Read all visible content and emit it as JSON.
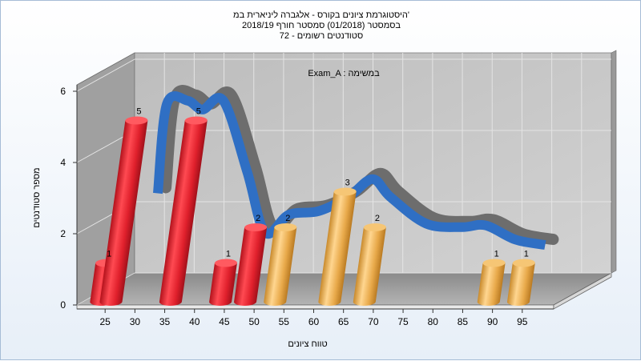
{
  "chart_data": {
    "type": "bar",
    "title_lines": [
      "היסטוגרמת ציונים בקורס - אלגברה ליניארית במ'",
      "בסמסטר  (01/2018)  סמסטר חורף 2018/19",
      "סטודנטים רשומים - 72"
    ],
    "subtitle": "Exam_A : במשימה",
    "xlabel": "טווח ציונים",
    "ylabel": "מספר סטודנטים",
    "ylim": [
      0,
      6
    ],
    "yticks": [
      "0",
      "2",
      "4",
      "6"
    ],
    "categories": [
      "25",
      "30",
      "35",
      "40",
      "45",
      "50",
      "55",
      "60",
      "65",
      "70",
      "75",
      "80",
      "85",
      "90",
      "95"
    ],
    "bars": [
      {
        "x": 27.5,
        "value": 1,
        "label": "1",
        "group": "fail"
      },
      {
        "x": 32.5,
        "value": 5,
        "label": "5",
        "group": "fail"
      },
      {
        "x": 42.5,
        "value": 5,
        "label": "5",
        "group": "fail"
      },
      {
        "x": 47.5,
        "value": 1,
        "label": "1",
        "group": "fail"
      },
      {
        "x": 52.5,
        "value": 2,
        "label": "2",
        "group": "fail"
      },
      {
        "x": 57.5,
        "value": 2,
        "label": "2",
        "group": "pass"
      },
      {
        "x": 67.5,
        "value": 3,
        "label": "3",
        "group": "pass"
      },
      {
        "x": 72.5,
        "value": 2,
        "label": "2",
        "group": "pass"
      },
      {
        "x": 92.5,
        "value": 1,
        "label": "1",
        "group": "pass"
      },
      {
        "x": 97.5,
        "value": 1,
        "label": "1",
        "group": "pass"
      }
    ],
    "curve": [
      {
        "x": 35,
        "y": 3.0
      },
      {
        "x": 36.5,
        "y": 5.5
      },
      {
        "x": 40,
        "y": 5.6
      },
      {
        "x": 42.5,
        "y": 5.35
      },
      {
        "x": 46,
        "y": 5.6
      },
      {
        "x": 50,
        "y": 3.6
      },
      {
        "x": 53,
        "y": 1.9
      },
      {
        "x": 57,
        "y": 2.4
      },
      {
        "x": 62,
        "y": 2.5
      },
      {
        "x": 67,
        "y": 2.9
      },
      {
        "x": 71,
        "y": 3.4
      },
      {
        "x": 74,
        "y": 2.9
      },
      {
        "x": 80,
        "y": 2.15
      },
      {
        "x": 86,
        "y": 2.05
      },
      {
        "x": 90,
        "y": 2.1
      },
      {
        "x": 95,
        "y": 1.7
      },
      {
        "x": 100,
        "y": 1.55
      }
    ],
    "colors": {
      "fail": "#e0202c",
      "pass": "#e8a94a",
      "curve_front": "#2f6fc4",
      "curve_top": "#6d6d6d",
      "wall": "#a0a0a0",
      "back_wall": "#c2c2c2",
      "floor": "#a6a6a6",
      "grid": "#e4e4e4"
    },
    "grid": true
  }
}
